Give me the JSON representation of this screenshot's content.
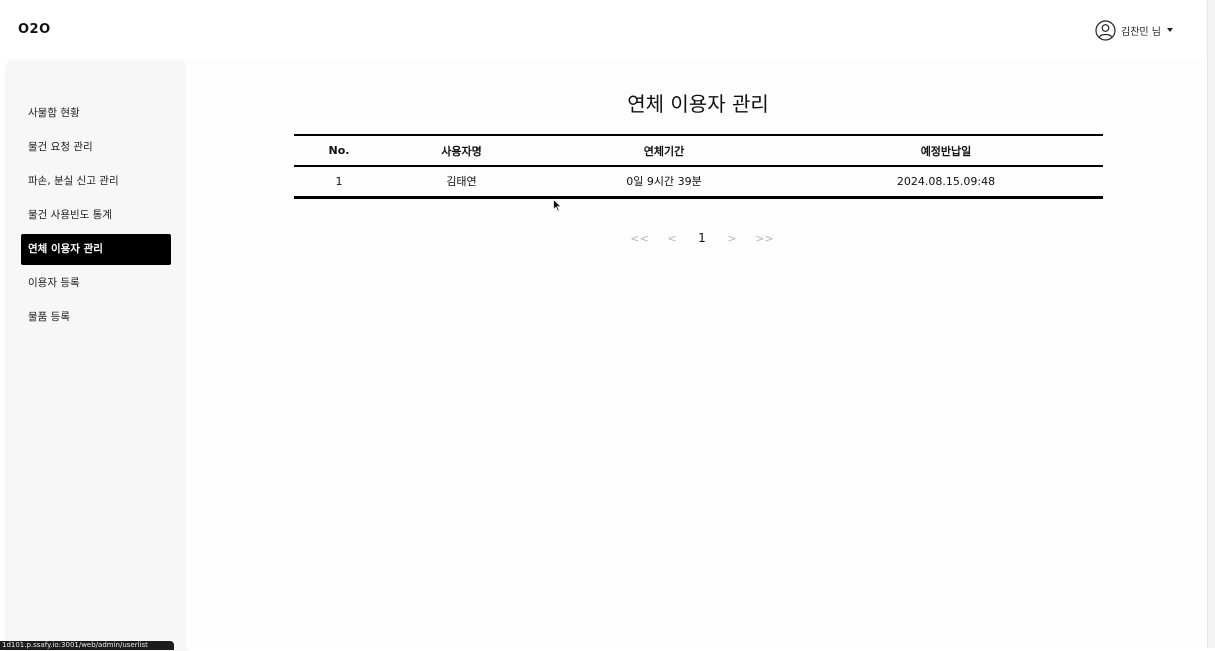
{
  "app": {
    "logo": "O2O",
    "user_name": "김찬민 님"
  },
  "sidebar": {
    "items": [
      {
        "label": "사물함 현황",
        "active": false
      },
      {
        "label": "물건 요청 관리",
        "active": false
      },
      {
        "label": "파손, 분실 신고 관리",
        "active": false
      },
      {
        "label": "물건 사용빈도 통계",
        "active": false
      },
      {
        "label": "연체 이용자 관리",
        "active": true
      },
      {
        "label": "이용자 등록",
        "active": false
      },
      {
        "label": "물품 등록",
        "active": false
      }
    ]
  },
  "main": {
    "title": "연체 이용자 관리",
    "table": {
      "headers": [
        "No.",
        "사용자명",
        "연체기간",
        "예정반납일"
      ],
      "rows": [
        [
          "1",
          "김태연",
          "0일 9시간 39분",
          "2024.08.15.09:48"
        ]
      ]
    },
    "pagination": {
      "first": "<<",
      "prev": "<",
      "current": "1",
      "next": ">",
      "last": ">>"
    }
  },
  "status_bar": {
    "url": "1d101.p.ssafy.io:3001/web/admin/userlist"
  },
  "icons": {
    "user": "user-avatar-icon",
    "dropdown": "caret-down-icon",
    "cursor": "mouse-pointer-icon"
  },
  "colors": {
    "active_nav_bg": "#000000",
    "active_nav_text": "#ffffff",
    "sidebar_bg": "#f7f7f8",
    "pager_disabled": "#b5b5b5"
  }
}
